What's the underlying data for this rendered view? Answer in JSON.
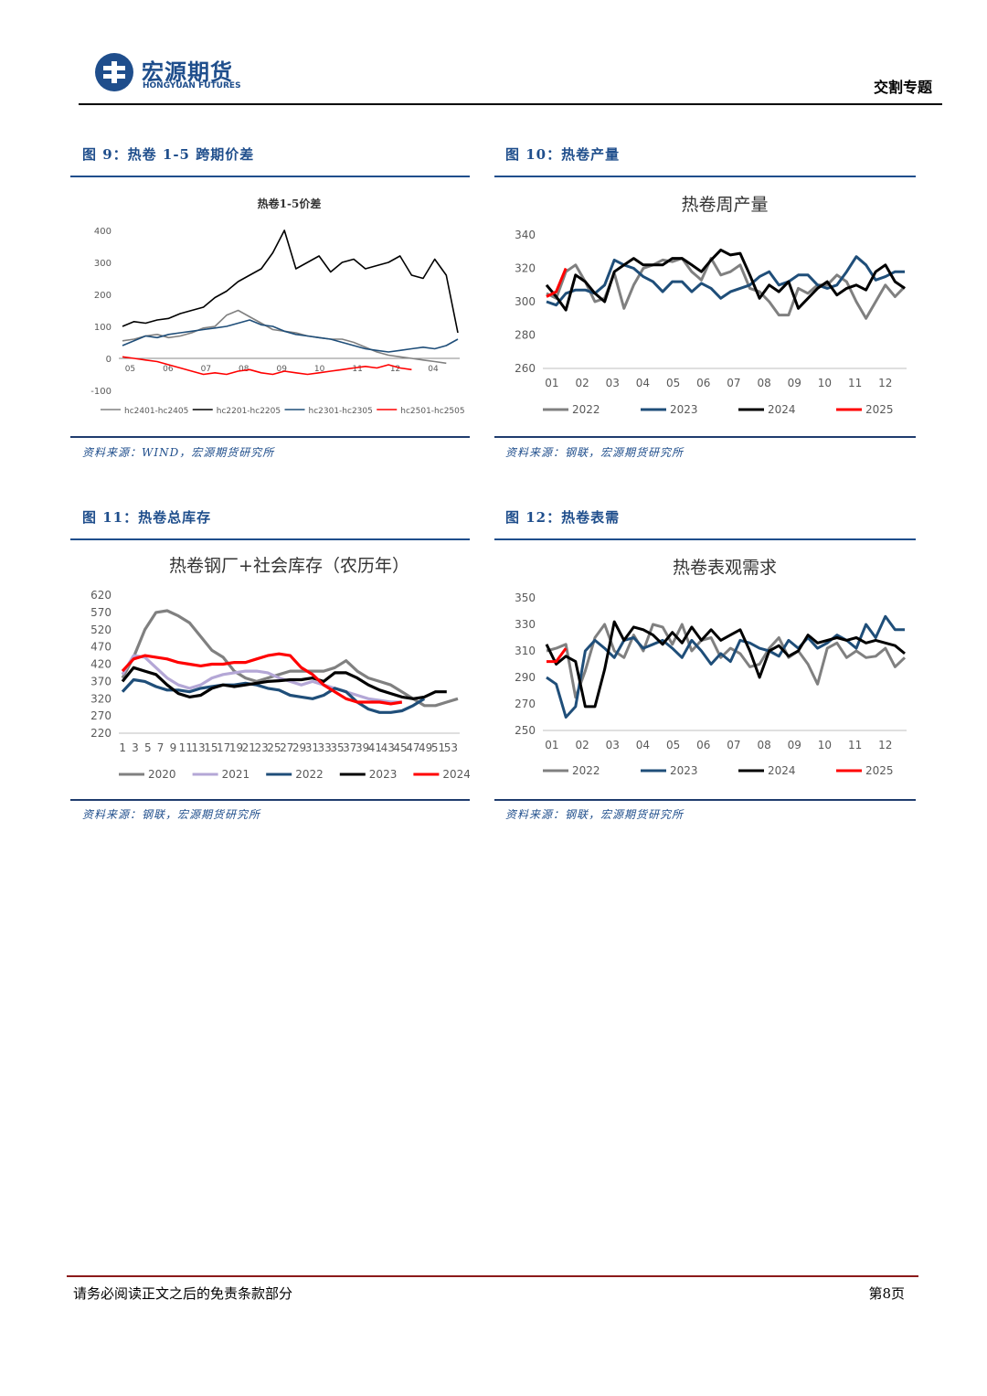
{
  "header": {
    "logo_cn": "宏源期货",
    "logo_en": "HONGYUAN FUTURES",
    "section": "交割专题"
  },
  "figures": [
    {
      "id": "fig9",
      "caption": "图 9：热卷 1-5 跨期价差",
      "source": "资料来源：WIND，宏源期货研究所"
    },
    {
      "id": "fig10",
      "caption": "图 10：热卷产量",
      "source": "资料来源：钢联，宏源期货研究所"
    },
    {
      "id": "fig11",
      "caption": "图 11：热卷总库存",
      "source": "资料来源：钢联，宏源期货研究所"
    },
    {
      "id": "fig12",
      "caption": "图 12：热卷表需",
      "source": "资料来源：钢联，宏源期货研究所"
    }
  ],
  "footer": {
    "disclaimer": "请务必阅读正文之后的免责条款部分",
    "page": "第8页"
  },
  "colors": {
    "brand_blue": "#1f4e8c",
    "gray": "#808080",
    "navy": "#1f4e79",
    "black": "#000000",
    "red": "#ff0000",
    "lavender": "#b4a7d6"
  },
  "chart_data": [
    {
      "type": "line",
      "title": "热卷1-5价差",
      "x_ticks": [
        "05",
        "06",
        "07",
        "08",
        "09",
        "10",
        "11",
        "12",
        "04"
      ],
      "ylim": [
        -100,
        400
      ],
      "y_ticks": [
        "-100",
        "0",
        "100",
        "200",
        "300",
        "400"
      ],
      "legend_position": "bottom",
      "series": [
        {
          "name": "hc2401-hc2405",
          "color": "#808080",
          "values": [
            55,
            60,
            70,
            75,
            65,
            70,
            80,
            95,
            100,
            135,
            150,
            130,
            110,
            90,
            85,
            80,
            70,
            65,
            60,
            60,
            50,
            35,
            20,
            10,
            5,
            0,
            -5,
            -10,
            -15
          ]
        },
        {
          "name": "hc2201-hc2205",
          "color": "#000000",
          "values": [
            100,
            115,
            110,
            120,
            125,
            140,
            150,
            160,
            190,
            210,
            240,
            260,
            280,
            330,
            400,
            280,
            300,
            320,
            270,
            300,
            310,
            280,
            290,
            300,
            320,
            260,
            250,
            310,
            260,
            80
          ]
        },
        {
          "name": "hc2301-hc2305",
          "color": "#1f4e79",
          "values": [
            40,
            55,
            70,
            65,
            75,
            80,
            85,
            90,
            95,
            100,
            110,
            120,
            105,
            100,
            85,
            75,
            70,
            65,
            60,
            50,
            40,
            30,
            25,
            20,
            25,
            30,
            35,
            30,
            40,
            60
          ]
        },
        {
          "name": "hc2501-hc2505",
          "color": "#ff0000",
          "values": [
            5,
            0,
            -5,
            -10,
            -20,
            -30,
            -40,
            -50,
            -45,
            -50,
            -40,
            -35,
            -45,
            -50,
            -40,
            -45,
            -50,
            -45,
            -40,
            -35,
            -30,
            -25,
            -30,
            -20,
            -30,
            -35
          ]
        }
      ]
    },
    {
      "type": "line",
      "title": "热卷周产量",
      "x_ticks": [
        "01",
        "02",
        "03",
        "04",
        "05",
        "06",
        "07",
        "08",
        "09",
        "10",
        "11",
        "12"
      ],
      "ylim": [
        260,
        340
      ],
      "y_ticks": [
        "260",
        "280",
        "300",
        "320",
        "340"
      ],
      "legend_position": "bottom",
      "series": [
        {
          "name": "2022",
          "color": "#808080",
          "values": [
            305,
            302,
            318,
            322,
            312,
            300,
            302,
            317,
            296,
            310,
            320,
            322,
            325,
            324,
            326,
            318,
            313,
            326,
            316,
            318,
            322,
            308,
            306,
            300,
            292,
            292,
            308,
            305,
            310,
            310,
            316,
            312,
            300,
            290,
            300,
            310,
            303,
            309
          ]
        },
        {
          "name": "2023",
          "color": "#1f4e79",
          "values": [
            300,
            298,
            305,
            307,
            307,
            305,
            310,
            325,
            322,
            320,
            315,
            312,
            306,
            312,
            312,
            306,
            311,
            308,
            302,
            306,
            308,
            310,
            315,
            318,
            310,
            312,
            316,
            316,
            310,
            308,
            310,
            318,
            327,
            322,
            313,
            315,
            318,
            318
          ]
        },
        {
          "name": "2024",
          "color": "#000000",
          "values": [
            310,
            303,
            295,
            316,
            312,
            305,
            300,
            318,
            322,
            326,
            322,
            322,
            322,
            326,
            326,
            322,
            318,
            325,
            331,
            328,
            329,
            316,
            302,
            310,
            306,
            312,
            296,
            302,
            308,
            312,
            304,
            308,
            310,
            307,
            318,
            322,
            312,
            308
          ]
        },
        {
          "name": "2025",
          "color": "#ff0000",
          "values": [
            303,
            306,
            320
          ]
        }
      ]
    },
    {
      "type": "line",
      "title": "热卷钢厂+社会库存（农历年）",
      "x_ticks": [
        "1",
        "3",
        "5",
        "7",
        "9",
        "11",
        "13",
        "15",
        "17",
        "19",
        "21",
        "23",
        "25",
        "27",
        "29",
        "31",
        "33",
        "35",
        "37",
        "39",
        "41",
        "43",
        "45",
        "47",
        "49",
        "51",
        "53"
      ],
      "ylim": [
        220,
        620
      ],
      "y_ticks": [
        "220",
        "270",
        "320",
        "370",
        "420",
        "470",
        "520",
        "570",
        "620"
      ],
      "legend_position": "bottom",
      "series": [
        {
          "name": "2020",
          "color": "#808080",
          "values": [
            380,
            440,
            520,
            570,
            575,
            560,
            540,
            500,
            460,
            440,
            400,
            380,
            370,
            380,
            390,
            400,
            400,
            400,
            400,
            410,
            430,
            400,
            380,
            370,
            360,
            340,
            320,
            300,
            300,
            310,
            320
          ]
        },
        {
          "name": "2021",
          "color": "#b4a7d6",
          "values": [
            390,
            445,
            440,
            410,
            380,
            360,
            350,
            360,
            380,
            390,
            395,
            400,
            400,
            395,
            380,
            370,
            360,
            370,
            360,
            350,
            340,
            330,
            320,
            315,
            310,
            310
          ]
        },
        {
          "name": "2022",
          "color": "#1f4e79",
          "values": [
            340,
            375,
            370,
            355,
            345,
            345,
            340,
            350,
            355,
            360,
            360,
            365,
            360,
            350,
            345,
            330,
            325,
            320,
            330,
            350,
            340,
            310,
            290,
            280,
            280,
            285,
            300,
            320
          ]
        },
        {
          "name": "2023",
          "color": "#000000",
          "values": [
            370,
            410,
            400,
            390,
            360,
            335,
            325,
            330,
            350,
            360,
            355,
            360,
            365,
            370,
            372,
            375,
            375,
            380,
            370,
            395,
            395,
            380,
            360,
            345,
            335,
            325,
            320,
            325,
            340,
            340
          ]
        },
        {
          "name": "2024",
          "color": "#ff0000",
          "values": [
            400,
            435,
            445,
            440,
            435,
            425,
            420,
            415,
            420,
            420,
            425,
            425,
            435,
            445,
            450,
            445,
            410,
            390,
            360,
            340,
            320,
            310,
            310,
            310,
            305,
            310
          ]
        }
      ]
    },
    {
      "type": "line",
      "title": "热卷表观需求",
      "x_ticks": [
        "01",
        "02",
        "03",
        "04",
        "05",
        "06",
        "07",
        "08",
        "09",
        "10",
        "11",
        "12"
      ],
      "ylim": [
        250,
        350
      ],
      "y_ticks": [
        "250",
        "270",
        "290",
        "310",
        "330",
        "350"
      ],
      "legend_position": "bottom",
      "series": [
        {
          "name": "2022",
          "color": "#808080",
          "values": [
            310,
            312,
            315,
            275,
            295,
            320,
            330,
            310,
            305,
            322,
            310,
            330,
            328,
            315,
            330,
            310,
            318,
            320,
            305,
            312,
            308,
            298,
            300,
            312,
            320,
            305,
            310,
            300,
            285,
            312,
            316,
            305,
            310,
            305,
            306,
            312,
            298,
            305
          ]
        },
        {
          "name": "2023",
          "color": "#1f4e79",
          "values": [
            290,
            285,
            260,
            268,
            310,
            318,
            312,
            305,
            318,
            320,
            312,
            315,
            318,
            312,
            305,
            318,
            310,
            300,
            308,
            302,
            318,
            316,
            312,
            310,
            306,
            318,
            312,
            320,
            312,
            316,
            322,
            318,
            312,
            330,
            320,
            336,
            326,
            326
          ]
        },
        {
          "name": "2024",
          "color": "#000000",
          "values": [
            315,
            300,
            306,
            302,
            268,
            268,
            296,
            332,
            318,
            328,
            326,
            322,
            315,
            324,
            316,
            328,
            318,
            326,
            318,
            322,
            326,
            310,
            290,
            310,
            314,
            306,
            310,
            322,
            316,
            318,
            320,
            318,
            320,
            316,
            318,
            316,
            314,
            308
          ]
        },
        {
          "name": "2025",
          "color": "#ff0000",
          "values": [
            302,
            302,
            312
          ]
        }
      ]
    }
  ]
}
